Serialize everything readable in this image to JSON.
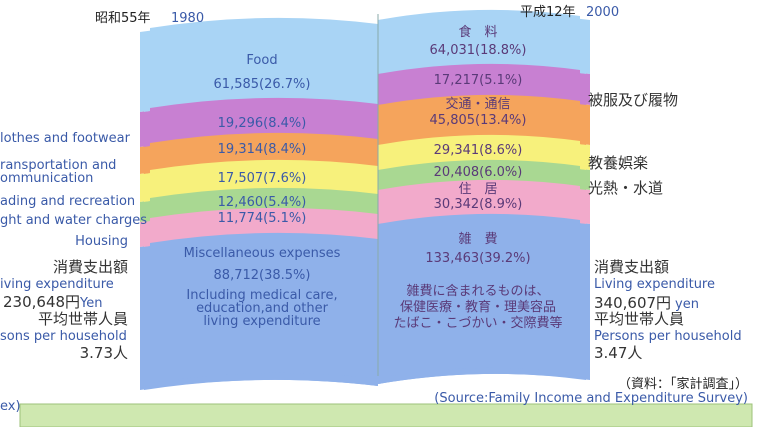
{
  "header": {
    "left_year": "昭和55年",
    "left_year_en": "1980",
    "right_year": "平成12年",
    "right_year_en": "2000"
  },
  "left_page": {
    "food_label": "Food",
    "food": "61,585(26.7%)",
    "clothes": "19,296(8.4%)",
    "transport": "19,314(8.4%)",
    "reading": "17,507(7.6%)",
    "fuel": "12,460(5.4%)",
    "housing": "11,774(5.1%)",
    "misc_label": "Miscellaneous expenses",
    "misc": "88,712(38.5%)",
    "misc_note": [
      "Including medical care,",
      "education,and other",
      "living expenditure"
    ]
  },
  "right_page": {
    "food_label": "食　料",
    "food": "64,031(18.8%)",
    "clothes": "17,217(5.1%)",
    "transport_label": "交通・通信",
    "transport": "45,805(13.4%)",
    "reading": "29,341(8.6%)",
    "fuel": "20,408(6.0%)",
    "housing_label": "住　居",
    "housing": "30,342(8.9%)",
    "misc_label": "雑　費",
    "misc": "133,463(39.2%)",
    "misc_note": [
      "雑費に含まれるものは、",
      "保健医療・教育・理美容品",
      "たばこ・こづかい・交際費等"
    ]
  },
  "left_legend": [
    "lothes and footwear",
    "ransportation and",
    "ommunication",
    "ading and recreation",
    "ght and water charges",
    "Housing"
  ],
  "left_summary": {
    "label_ja": "消費支出額",
    "label_en": "iving expenditure",
    "amount": "230,648円",
    "amount_unit": "Yen",
    "persons_ja": "平均世帯人員",
    "persons_en": "sons per household",
    "persons": "3.73人",
    "note": "ex)"
  },
  "right_legend": [
    "被服及び履物",
    "教養娯楽",
    "光熱・水道"
  ],
  "right_summary": {
    "label_ja": "消費支出額",
    "label_en": "Living expenditure",
    "amount": "340,607円",
    "amount_unit": "yen",
    "persons_ja": "平均世帯人員",
    "persons_en": "Persons per household",
    "persons": "3.47人"
  },
  "source": [
    "（資料：「家計調査」）",
    "(Source:Family Income and Expenditure Survey)"
  ]
}
